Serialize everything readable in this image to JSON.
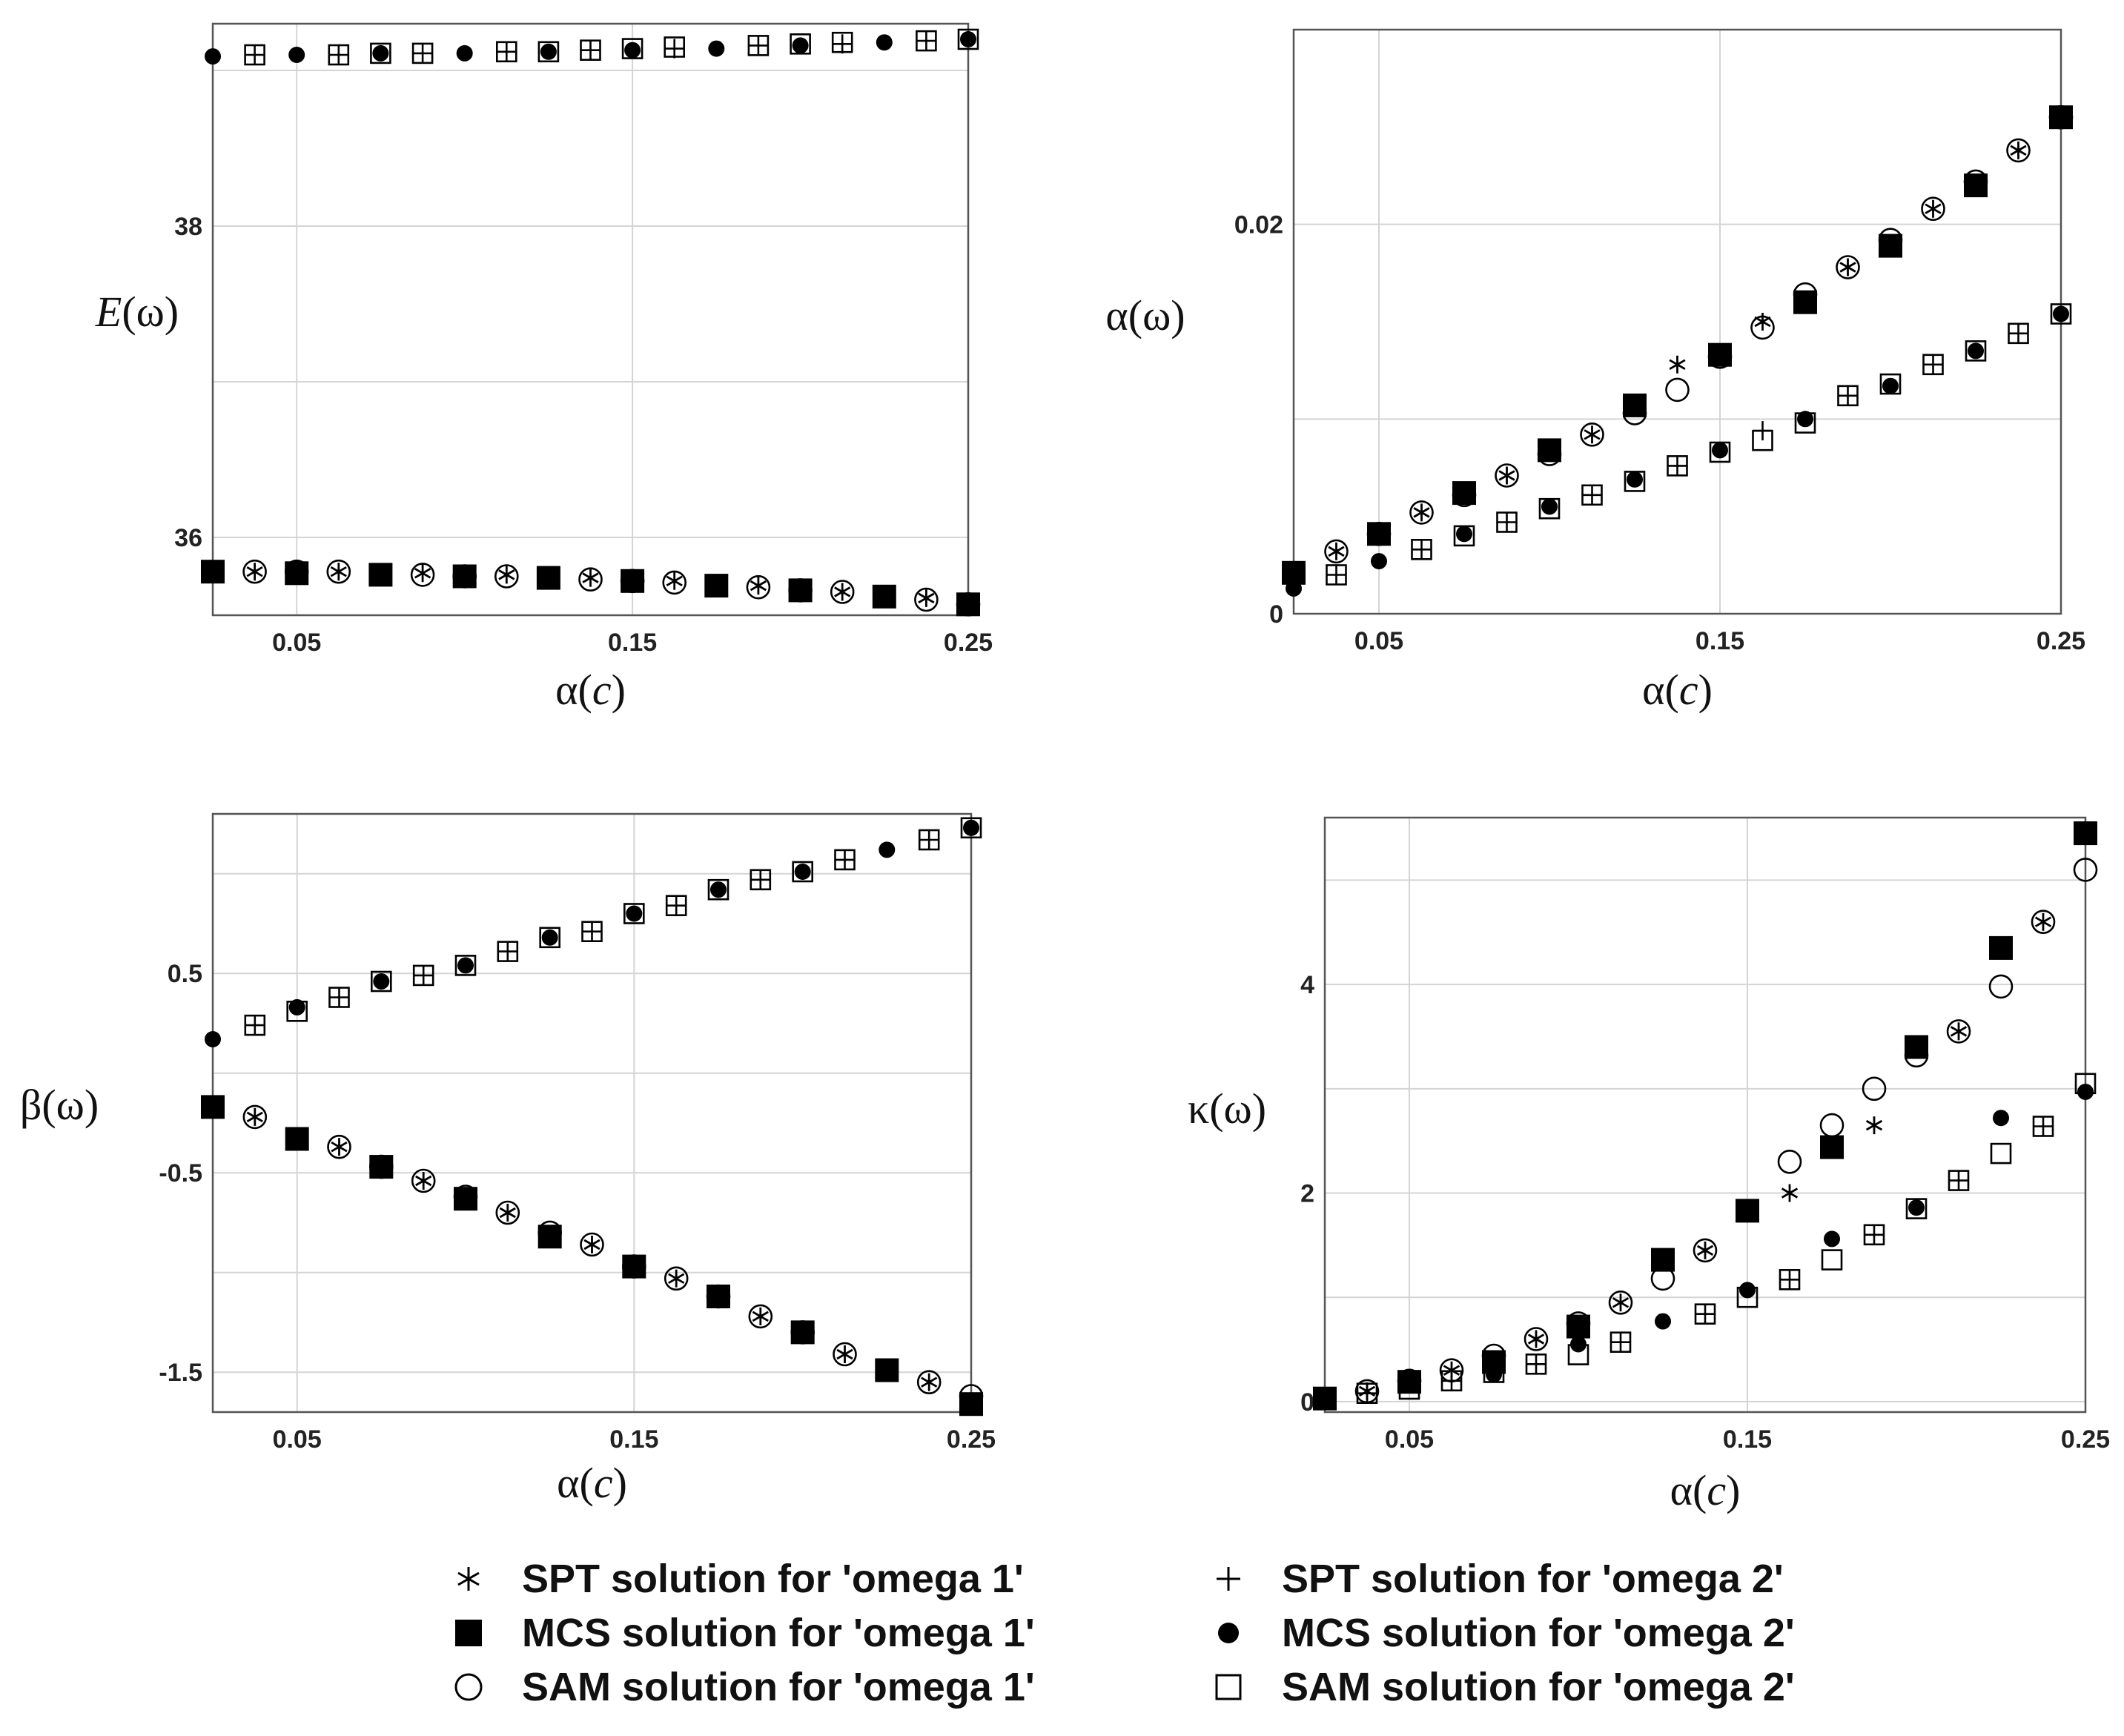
{
  "chart_data": [
    {
      "id": "E",
      "type": "scatter",
      "ylabel_sym": "E",
      "ylabel_arg": "ω",
      "xlabel_sym": "α",
      "xlabel_arg": "c",
      "xlim": [
        0.025,
        0.25
      ],
      "ylim": [
        35.5,
        39.3
      ],
      "xticks": [
        0.05,
        0.15,
        0.25
      ],
      "xtick_labels": [
        "0.05",
        "0.15",
        "0.25"
      ],
      "yticks": [
        36,
        38
      ],
      "ytick_labels": [
        "36",
        "38"
      ],
      "ygrid": [
        36,
        37,
        38,
        39
      ],
      "series": [
        {
          "name": "SPT solution for 'omega 1'",
          "marker": "star",
          "x": [
            0.0375,
            0.0625,
            0.0875,
            0.1125,
            0.1375,
            0.1625,
            0.1875,
            0.2125,
            0.2375
          ],
          "y": [
            35.78,
            35.78,
            35.77,
            35.76,
            35.74,
            35.72,
            35.69,
            35.65,
            35.61
          ]
        },
        {
          "name": "MCS solution for 'omega 1'",
          "marker": "square_filled",
          "x": [
            0.025,
            0.05,
            0.075,
            0.1,
            0.125,
            0.15,
            0.175,
            0.2,
            0.225,
            0.25
          ],
          "y": [
            35.78,
            35.77,
            35.76,
            35.75,
            35.74,
            35.72,
            35.69,
            35.66,
            35.62,
            35.57
          ]
        },
        {
          "name": "SAM solution for 'omega 1'",
          "marker": "circle_open",
          "x": [
            0.0375,
            0.05,
            0.0625,
            0.0875,
            0.1,
            0.1125,
            0.1375,
            0.15,
            0.1625,
            0.1875,
            0.2,
            0.2125,
            0.2375,
            0.25
          ],
          "y": [
            35.78,
            35.78,
            35.78,
            35.76,
            35.75,
            35.75,
            35.73,
            35.72,
            35.71,
            35.68,
            35.66,
            35.65,
            35.6,
            35.57
          ]
        },
        {
          "name": "SPT solution for 'omega 2'",
          "marker": "plus",
          "x": [
            0.0375,
            0.0625,
            0.0875,
            0.1125,
            0.1375,
            0.1625,
            0.1875,
            0.2125,
            0.2375
          ],
          "y": [
            39.1,
            39.1,
            39.11,
            39.12,
            39.13,
            39.14,
            39.16,
            39.17,
            39.19
          ]
        },
        {
          "name": "MCS solution for 'omega 2'",
          "marker": "dot_filled",
          "x": [
            0.025,
            0.05,
            0.075,
            0.1,
            0.125,
            0.15,
            0.175,
            0.2,
            0.225,
            0.25
          ],
          "y": [
            39.09,
            39.1,
            39.11,
            39.11,
            39.12,
            39.13,
            39.14,
            39.16,
            39.18,
            39.2
          ]
        },
        {
          "name": "SAM solution for 'omega 2'",
          "marker": "square_open",
          "x": [
            0.0375,
            0.0625,
            0.075,
            0.0875,
            0.1125,
            0.125,
            0.1375,
            0.15,
            0.1625,
            0.1875,
            0.2,
            0.2125,
            0.2375,
            0.25
          ],
          "y": [
            39.1,
            39.1,
            39.11,
            39.11,
            39.12,
            39.12,
            39.13,
            39.14,
            39.15,
            39.16,
            39.17,
            39.18,
            39.19,
            39.2
          ]
        }
      ]
    },
    {
      "id": "alpha",
      "type": "scatter",
      "ylabel_sym": "α",
      "ylabel_arg": "ω",
      "xlabel_sym": "α",
      "xlabel_arg": "c",
      "xlim": [
        0.025,
        0.25
      ],
      "ylim": [
        0,
        0.03
      ],
      "xticks": [
        0.05,
        0.15,
        0.25
      ],
      "xtick_labels": [
        "0.05",
        "0.15",
        "0.25"
      ],
      "yticks": [
        0,
        0.02
      ],
      "ytick_labels": [
        "0",
        "0.02"
      ],
      "ygrid": [
        0.01,
        0.02
      ],
      "series": [
        {
          "name": "SPT solution for 'omega 1'",
          "marker": "star",
          "x": [
            0.0375,
            0.0625,
            0.0875,
            0.1125,
            0.1375,
            0.1625,
            0.1875,
            0.2125,
            0.2375
          ],
          "y": [
            0.0032,
            0.0052,
            0.0071,
            0.0092,
            0.0128,
            0.015,
            0.0178,
            0.0208,
            0.0238
          ]
        },
        {
          "name": "MCS solution for 'omega 1'",
          "marker": "square_filled",
          "x": [
            0.025,
            0.05,
            0.075,
            0.1,
            0.125,
            0.15,
            0.175,
            0.2,
            0.225,
            0.25
          ],
          "y": [
            0.0021,
            0.0041,
            0.0062,
            0.0084,
            0.0107,
            0.0133,
            0.016,
            0.0189,
            0.022,
            0.0255
          ]
        },
        {
          "name": "SAM solution for 'omega 1'",
          "marker": "circle_open",
          "x": [
            0.0375,
            0.05,
            0.0625,
            0.075,
            0.0875,
            0.1,
            0.1125,
            0.125,
            0.1375,
            0.15,
            0.1625,
            0.175,
            0.1875,
            0.2,
            0.2125,
            0.225,
            0.2375,
            0.25
          ],
          "y": [
            0.0032,
            0.0041,
            0.0052,
            0.0061,
            0.0071,
            0.0082,
            0.0092,
            0.0103,
            0.0115,
            0.0132,
            0.0147,
            0.0164,
            0.0178,
            0.0192,
            0.0208,
            0.0222,
            0.0238,
            0.0255
          ]
        },
        {
          "name": "SPT solution for 'omega 2'",
          "marker": "plus",
          "x": [
            0.0375,
            0.0625,
            0.0875,
            0.1125,
            0.1375,
            0.1625,
            0.1875,
            0.2125,
            0.2375
          ],
          "y": [
            0.002,
            0.0033,
            0.0047,
            0.0061,
            0.0076,
            0.0094,
            0.0112,
            0.0128,
            0.0144
          ]
        },
        {
          "name": "MCS solution for 'omega 2'",
          "marker": "dot_filled",
          "x": [
            0.025,
            0.05,
            0.075,
            0.1,
            0.125,
            0.15,
            0.175,
            0.2,
            0.225,
            0.25
          ],
          "y": [
            0.0013,
            0.0027,
            0.0041,
            0.0055,
            0.0069,
            0.0084,
            0.01,
            0.0117,
            0.0135,
            0.0154
          ]
        },
        {
          "name": "SAM solution for 'omega 2'",
          "marker": "square_open",
          "x": [
            0.0375,
            0.0625,
            0.075,
            0.0875,
            0.1,
            0.1125,
            0.125,
            0.1375,
            0.15,
            0.1625,
            0.175,
            0.1875,
            0.2,
            0.2125,
            0.225,
            0.2375,
            0.25
          ],
          "y": [
            0.002,
            0.0033,
            0.004,
            0.0047,
            0.0054,
            0.0061,
            0.0068,
            0.0076,
            0.0083,
            0.0089,
            0.0098,
            0.0112,
            0.0118,
            0.0128,
            0.0135,
            0.0144,
            0.0154
          ]
        }
      ]
    },
    {
      "id": "beta",
      "type": "scatter",
      "ylabel_sym": "β",
      "ylabel_arg": "ω",
      "xlabel_sym": "α",
      "xlabel_arg": "c",
      "xlim": [
        0.025,
        0.25
      ],
      "ylim": [
        -1.7,
        1.3
      ],
      "xticks": [
        0.05,
        0.15,
        0.25
      ],
      "xtick_labels": [
        "0.05",
        "0.15",
        "0.25"
      ],
      "yticks": [
        -1.5,
        -0.5,
        0.5
      ],
      "ytick_labels": [
        "-1.5",
        "-0.5",
        "0.5"
      ],
      "ygrid": [
        -1.5,
        -1,
        -0.5,
        0,
        0.5,
        1
      ],
      "series": [
        {
          "name": "SPT solution for 'omega 1'",
          "marker": "star",
          "x": [
            0.0375,
            0.0625,
            0.0875,
            0.1125,
            0.1375,
            0.1625,
            0.1875,
            0.2125,
            0.2375
          ],
          "y": [
            -0.22,
            -0.37,
            -0.54,
            -0.7,
            -0.86,
            -1.03,
            -1.22,
            -1.41,
            -1.55
          ]
        },
        {
          "name": "MCS solution for 'omega 1'",
          "marker": "square_filled",
          "x": [
            0.025,
            0.05,
            0.075,
            0.1,
            0.125,
            0.15,
            0.175,
            0.2,
            0.225,
            0.25
          ],
          "y": [
            -0.17,
            -0.33,
            -0.47,
            -0.63,
            -0.82,
            -0.97,
            -1.12,
            -1.3,
            -1.49,
            -1.66
          ]
        },
        {
          "name": "SAM solution for 'omega 1'",
          "marker": "circle_open",
          "x": [
            0.0375,
            0.0625,
            0.075,
            0.0875,
            0.1,
            0.1125,
            0.125,
            0.1375,
            0.15,
            0.1625,
            0.175,
            0.1875,
            0.2,
            0.2125,
            0.2375,
            0.25
          ],
          "y": [
            -0.22,
            -0.37,
            -0.47,
            -0.54,
            -0.62,
            -0.7,
            -0.8,
            -0.86,
            -0.97,
            -1.03,
            -1.12,
            -1.22,
            -1.3,
            -1.41,
            -1.55,
            -1.62
          ]
        },
        {
          "name": "SPT solution for 'omega 2'",
          "marker": "plus",
          "x": [
            0.0375,
            0.0625,
            0.0875,
            0.1125,
            0.1375,
            0.1625,
            0.1875,
            0.2125,
            0.2375
          ],
          "y": [
            0.24,
            0.38,
            0.49,
            0.61,
            0.71,
            0.84,
            0.97,
            1.07,
            1.17
          ]
        },
        {
          "name": "MCS solution for 'omega 2'",
          "marker": "dot_filled",
          "x": [
            0.025,
            0.05,
            0.075,
            0.1,
            0.125,
            0.15,
            0.175,
            0.2,
            0.225,
            0.25
          ],
          "y": [
            0.17,
            0.33,
            0.46,
            0.54,
            0.68,
            0.8,
            0.92,
            1.01,
            1.12,
            1.23
          ]
        },
        {
          "name": "SAM solution for 'omega 2'",
          "marker": "square_open",
          "x": [
            0.0375,
            0.05,
            0.0625,
            0.075,
            0.0875,
            0.1,
            0.1125,
            0.125,
            0.1375,
            0.15,
            0.1625,
            0.175,
            0.1875,
            0.2,
            0.2125,
            0.2375,
            0.25
          ],
          "y": [
            0.24,
            0.31,
            0.38,
            0.46,
            0.49,
            0.54,
            0.61,
            0.68,
            0.71,
            0.8,
            0.84,
            0.92,
            0.97,
            1.01,
            1.07,
            1.17,
            1.23
          ]
        }
      ]
    },
    {
      "id": "kappa",
      "type": "scatter",
      "ylabel_sym": "κ",
      "ylabel_arg": "ω",
      "xlabel_sym": "α",
      "xlabel_arg": "c",
      "xlim": [
        0.025,
        0.25
      ],
      "ylim": [
        -0.1,
        5.6
      ],
      "xticks": [
        0.05,
        0.15,
        0.25
      ],
      "xtick_labels": [
        "0.05",
        "0.15",
        "0.25"
      ],
      "yticks": [
        0,
        2,
        4
      ],
      "ytick_labels": [
        "0",
        "2",
        "4"
      ],
      "ygrid": [
        0,
        1,
        2,
        3,
        4,
        5
      ],
      "series": [
        {
          "name": "SPT solution for 'omega 1'",
          "marker": "star",
          "x": [
            0.0375,
            0.0625,
            0.0875,
            0.1125,
            0.1375,
            0.1625,
            0.1875,
            0.2125,
            0.2375
          ],
          "y": [
            0.1,
            0.3,
            0.6,
            0.95,
            1.45,
            2.0,
            2.65,
            3.55,
            4.6
          ]
        },
        {
          "name": "MCS solution for 'omega 1'",
          "marker": "square_filled",
          "x": [
            0.025,
            0.05,
            0.075,
            0.1,
            0.125,
            0.15,
            0.175,
            0.2,
            0.225,
            0.25
          ],
          "y": [
            0.03,
            0.19,
            0.38,
            0.72,
            1.36,
            1.83,
            2.44,
            3.4,
            4.35,
            5.45
          ]
        },
        {
          "name": "SAM solution for 'omega 1'",
          "marker": "circle_open",
          "x": [
            0.0375,
            0.05,
            0.0625,
            0.075,
            0.0875,
            0.1,
            0.1125,
            0.125,
            0.1375,
            0.1625,
            0.175,
            0.1875,
            0.2,
            0.2125,
            0.225,
            0.2375,
            0.25
          ],
          "y": [
            0.1,
            0.2,
            0.3,
            0.44,
            0.6,
            0.75,
            0.95,
            1.18,
            1.45,
            2.3,
            2.65,
            3.0,
            3.32,
            3.55,
            3.98,
            4.6,
            5.1
          ]
        },
        {
          "name": "SPT solution for 'omega 2'",
          "marker": "plus",
          "x": [
            0.0375,
            0.0625,
            0.0875,
            0.1125,
            0.1375,
            0.1625,
            0.1875,
            0.2125,
            0.2375
          ],
          "y": [
            0.08,
            0.2,
            0.36,
            0.57,
            0.84,
            1.17,
            1.6,
            2.12,
            2.64
          ]
        },
        {
          "name": "MCS solution for 'omega 2'",
          "marker": "dot_filled",
          "x": [
            0.025,
            0.05,
            0.075,
            0.1,
            0.125,
            0.15,
            0.175,
            0.2,
            0.225,
            0.25
          ],
          "y": [
            0.03,
            0.16,
            0.26,
            0.55,
            0.77,
            1.07,
            1.56,
            1.86,
            2.72,
            2.97
          ]
        },
        {
          "name": "SAM solution for 'omega 2'",
          "marker": "square_open",
          "x": [
            0.0375,
            0.05,
            0.0625,
            0.075,
            0.0875,
            0.1,
            0.1125,
            0.1375,
            0.15,
            0.1625,
            0.175,
            0.1875,
            0.2,
            0.2125,
            0.225,
            0.2375,
            0.25
          ],
          "y": [
            0.08,
            0.12,
            0.2,
            0.28,
            0.36,
            0.45,
            0.57,
            0.84,
            1.0,
            1.17,
            1.36,
            1.6,
            1.85,
            2.12,
            2.38,
            2.64,
            3.05
          ]
        }
      ]
    }
  ],
  "legend": {
    "items": [
      {
        "marker": "star",
        "label": "SPT solution for 'omega 1'"
      },
      {
        "marker": "square_filled",
        "label": "MCS solution for 'omega 1'"
      },
      {
        "marker": "circle_open",
        "label": "SAM solution for 'omega 1'"
      },
      {
        "marker": "plus",
        "label": "SPT solution for 'omega 2'"
      },
      {
        "marker": "dot_filled",
        "label": "MCS solution for 'omega 2'"
      },
      {
        "marker": "square_open",
        "label": "SAM solution for 'omega 2'"
      }
    ]
  }
}
